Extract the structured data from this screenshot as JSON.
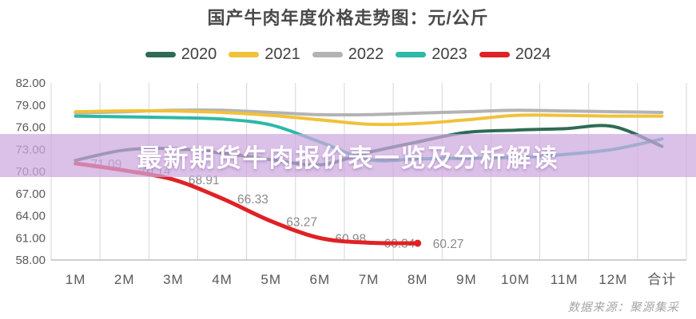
{
  "title": "国产牛肉年度价格走势图：元/公斤",
  "banner": {
    "text": "最新期货牛肉报价表一览及分析解读",
    "background_rgba": "rgba(205,167,223,0.72)",
    "text_color": "#ffffff"
  },
  "source_note": "数据来源：聚源集采",
  "chart_data": {
    "type": "line",
    "title": "国产牛肉年度价格走势图：元/公斤",
    "categories": [
      "1M",
      "2M",
      "3M",
      "4M",
      "5M",
      "6M",
      "7M",
      "8M",
      "9M",
      "10M",
      "11M",
      "12M",
      "合计"
    ],
    "ylim": [
      58,
      82
    ],
    "ytick_step": 3,
    "ytick_labels": [
      "82.00",
      "79.00",
      "76.00",
      "73.00",
      "70.00",
      "67.00",
      "64.00",
      "61.00",
      "58.00"
    ],
    "grid": "vertical-only",
    "legend_position": "top",
    "axis_text_color": "#595959",
    "gridline_color": "#d6d6d6",
    "axisline_color": "#bfbfbf",
    "point_label_color": "#8a8a8a",
    "draw_order": [
      "2023",
      "2022",
      "2021",
      "2020",
      "2024"
    ],
    "series": [
      {
        "name": "2020",
        "color": "#2e6b55",
        "width": 4,
        "values": [
          71.5,
          72.9,
          73.1,
          72.5,
          71.6,
          70.9,
          72.6,
          74.0,
          75.3,
          75.6,
          75.8,
          76.1,
          73.4
        ]
      },
      {
        "name": "2021",
        "color": "#f0c13a",
        "width": 4,
        "values": [
          78.1,
          78.2,
          78.2,
          78.0,
          77.6,
          77.0,
          76.4,
          76.5,
          77.0,
          77.6,
          77.6,
          77.5,
          77.5
        ]
      },
      {
        "name": "2022",
        "color": "#b3b3b3",
        "width": 4,
        "values": [
          77.9,
          78.1,
          78.3,
          78.3,
          78.0,
          77.7,
          77.7,
          77.9,
          78.1,
          78.3,
          78.2,
          78.1,
          78.0
        ]
      },
      {
        "name": "2023",
        "color": "#2cb9a5",
        "width": 4,
        "values": [
          77.5,
          77.4,
          77.3,
          77.1,
          76.3,
          74.0,
          71.6,
          71.7,
          71.8,
          71.9,
          72.3,
          73.0,
          74.4
        ]
      },
      {
        "name": "2024",
        "color": "#e02125",
        "width": 5,
        "end_marker": true,
        "values": [
          71.09,
          70.14,
          68.91,
          66.33,
          63.27,
          60.98,
          60.34,
          60.27,
          null,
          null,
          null,
          null,
          null
        ],
        "point_labels": [
          "71.09",
          "70.14",
          "68.91",
          "66.33",
          "63.27",
          "60.98",
          "60.34",
          "60.27"
        ]
      }
    ]
  }
}
